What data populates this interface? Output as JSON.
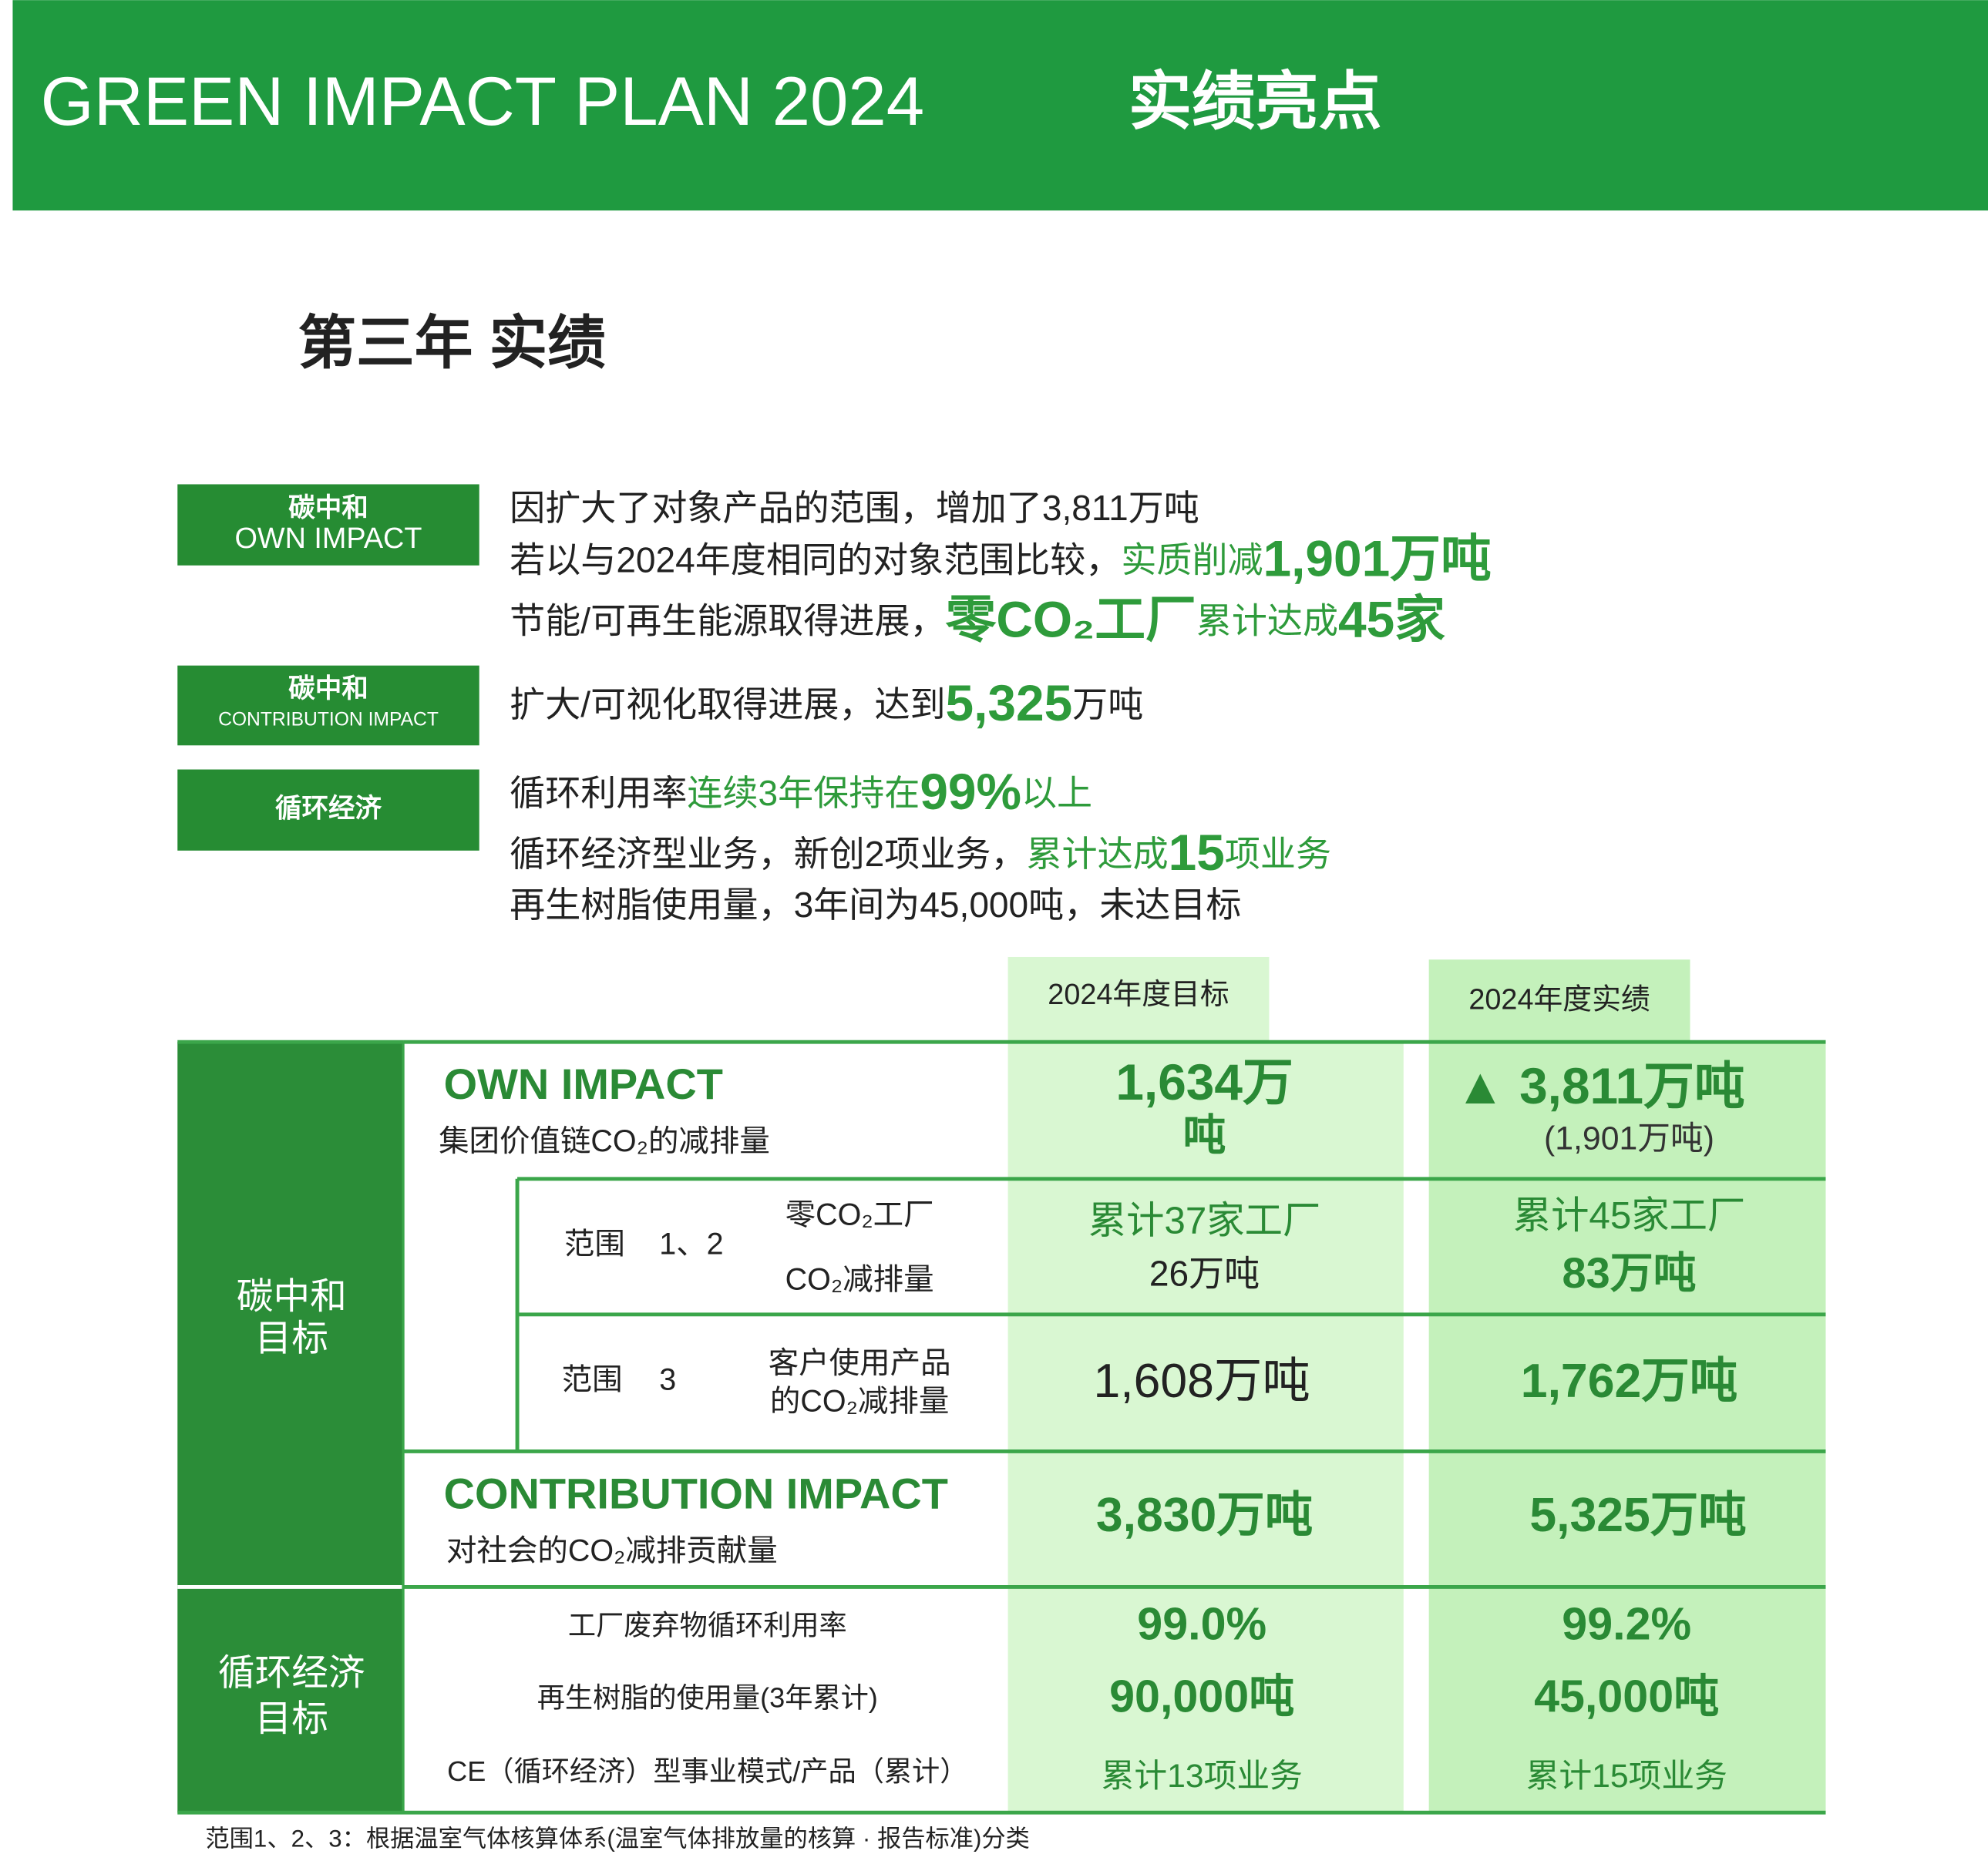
{
  "header": {
    "title": "GREEN IMPACT PLAN 2024",
    "subtitle": "实绩亮点"
  },
  "section_title": "第三年 实绩",
  "highlights": [
    {
      "label": [
        "碳中和",
        "OWN IMPACT"
      ],
      "lines": [
        [
          {
            "text": "因扩大了对象产品的范围，增加了3,811万吨",
            "style": "plain"
          }
        ],
        [
          {
            "text": "若以与2024年度相同的对象范围比较，",
            "style": "plain"
          },
          {
            "text": "实质削减",
            "style": "green"
          },
          {
            "text": "1,901万吨",
            "style": "green-big"
          }
        ],
        [
          {
            "text": "节能/可再生能源取得进展，",
            "style": "plain"
          },
          {
            "text": "零CO₂工厂",
            "style": "green-big"
          },
          {
            "text": "累计达成",
            "style": "green"
          },
          {
            "text": "45家",
            "style": "green-big"
          }
        ]
      ]
    },
    {
      "label": [
        "碳中和",
        "CONTRIBUTION IMPACT"
      ],
      "lines": [
        [
          {
            "text": "扩大/可视化取得进展，达到",
            "style": "plain"
          },
          {
            "text": "5,325",
            "style": "green-big"
          },
          {
            "text": "万吨",
            "style": "plain"
          }
        ]
      ]
    },
    {
      "label": [
        "循环经济"
      ],
      "lines": [
        [
          {
            "text": "循环利用率",
            "style": "plain"
          },
          {
            "text": "连续3年保持在",
            "style": "green"
          },
          {
            "text": "99%",
            "style": "green-big"
          },
          {
            "text": "以上",
            "style": "green"
          }
        ],
        [
          {
            "text": "循环经济型业务，新创2项业务，",
            "style": "plain"
          },
          {
            "text": "累计达成",
            "style": "green"
          },
          {
            "text": "15",
            "style": "green-big"
          },
          {
            "text": "项业务",
            "style": "green"
          }
        ],
        [
          {
            "text": "再生树脂使用量，3年间为45,000吨，未达目标",
            "style": "plain"
          }
        ]
      ]
    }
  ],
  "table": {
    "columns": [
      "2024年度目标",
      "2024年度实绩"
    ],
    "groups": [
      {
        "label": [
          "碳中和",
          "目标"
        ]
      },
      {
        "label": [
          "循环经济",
          "目标"
        ]
      }
    ],
    "own_impact": {
      "title": "OWN IMPACT",
      "desc": "集团价值链CO₂的减排量",
      "target": [
        "1,634万",
        "吨"
      ],
      "actual": "▲ 3,811万吨",
      "actual_note": "(1,901万吨)"
    },
    "scope_1_2": {
      "scope": "范围",
      "number": "1、2",
      "items": [
        "零CO₂工厂",
        "CO₂减排量"
      ],
      "target": [
        "累计37家工厂",
        "26万吨"
      ],
      "actual": [
        "累计45家工厂",
        "83万吨"
      ]
    },
    "scope_3": {
      "scope": "范围",
      "number": "3",
      "item": [
        "客户使用产品",
        "的CO₂减排量"
      ],
      "target": "1,608万吨",
      "actual": "1,762万吨"
    },
    "contribution_impact": {
      "title": "CONTRIBUTION IMPACT",
      "desc": "对社会的CO₂减排贡献量",
      "target": "3,830万吨",
      "actual": "5,325万吨"
    },
    "circular_rows": [
      {
        "item": "工厂废弃物循环利用率",
        "target": "99.0%",
        "actual": "99.2%"
      },
      {
        "item": "再生树脂的使用量(3年累计)",
        "target": "90,000吨",
        "actual": "45,000吨"
      },
      {
        "item": "CE（循环经济）型事业模式/产品（累计）",
        "target": "累计13项业务",
        "actual": "累计15项业务"
      }
    ]
  },
  "footnote": "范围1、2、3：根据温室气体核算体系(温室气体排放量的核算 · 报告标准)分类"
}
